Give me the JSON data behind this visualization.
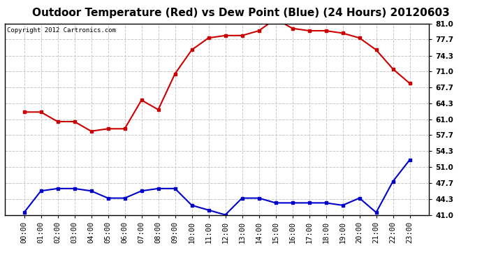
{
  "title": "Outdoor Temperature (Red) vs Dew Point (Blue) (24 Hours) 20120603",
  "copyright": "Copyright 2012 Cartronics.com",
  "x_labels": [
    "00:00",
    "01:00",
    "02:00",
    "03:00",
    "04:00",
    "05:00",
    "06:00",
    "07:00",
    "08:00",
    "09:00",
    "10:00",
    "11:00",
    "12:00",
    "13:00",
    "14:00",
    "15:00",
    "16:00",
    "17:00",
    "18:00",
    "19:00",
    "20:00",
    "21:00",
    "22:00",
    "23:00"
  ],
  "temp_red": [
    62.5,
    62.5,
    60.5,
    60.5,
    58.5,
    59.0,
    59.0,
    65.0,
    63.0,
    70.5,
    75.5,
    78.0,
    78.5,
    78.5,
    79.5,
    82.0,
    80.0,
    79.5,
    79.5,
    79.0,
    78.0,
    75.5,
    71.5,
    68.5
  ],
  "dew_blue": [
    41.5,
    46.0,
    46.5,
    46.5,
    46.0,
    44.5,
    44.5,
    46.0,
    46.5,
    46.5,
    43.0,
    42.0,
    41.0,
    44.5,
    44.5,
    43.5,
    43.5,
    43.5,
    43.5,
    43.0,
    44.5,
    41.5,
    48.0,
    52.5
  ],
  "ylim": [
    41.0,
    81.0
  ],
  "yticks": [
    41.0,
    44.3,
    47.7,
    51.0,
    54.3,
    57.7,
    61.0,
    64.3,
    67.7,
    71.0,
    74.3,
    77.7,
    81.0
  ],
  "bg_color": "#ffffff",
  "grid_color": "#c8c8c8",
  "red_color": "#cc0000",
  "blue_color": "#0000cc",
  "title_fontsize": 11,
  "copyright_fontsize": 6.5,
  "tick_fontsize": 7.5,
  "marker_size": 3
}
